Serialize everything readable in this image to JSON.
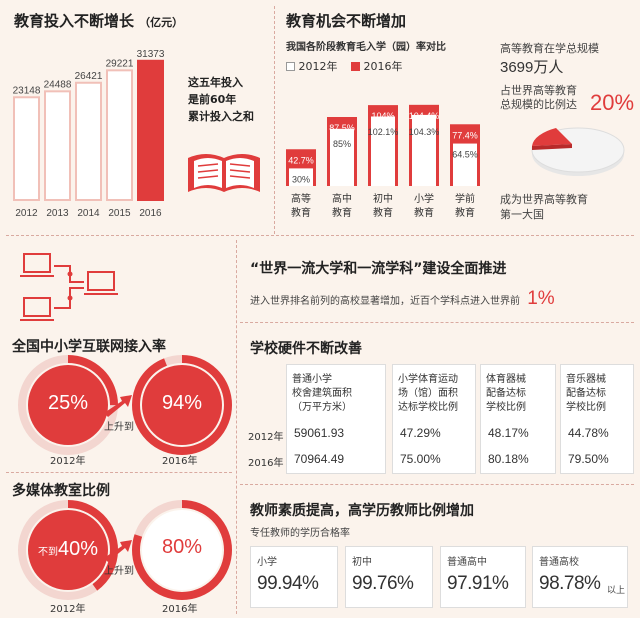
{
  "colors": {
    "red": "#e03c3c",
    "pink": "#f6d2cc",
    "white": "#ffffff",
    "bg": "#fbf3ec",
    "grey": "#cccccc"
  },
  "invest": {
    "title": "教育投入不断增长",
    "unit": "（亿元）",
    "note": [
      "这五年投入",
      "是前60年",
      "累计投入之和"
    ]
  },
  "opportunity": {
    "title": "教育机会不断增加",
    "subtitle": "我国各阶段教育毛入学（园）率对比",
    "legend": [
      "2012年",
      "2016年"
    ],
    "scale_note": "高等教育在学总规模",
    "scale_value": "3699万人",
    "share_note": [
      "占世界高等教育",
      "总规模的比例达"
    ],
    "share_value": "20%",
    "first_note": [
      "成为世界高等教育",
      "第一大国"
    ]
  },
  "worldclass": {
    "title": "“世界一流大学和一流学科”建设全面推进",
    "text": "进入世界排名前列的高校显著增加，近百个学科点进入世界前",
    "value": "1%"
  },
  "internet": {
    "title": "全国中小学互联网接入率",
    "left_value": "25%",
    "right_value": "94%",
    "arrow": "上升到",
    "left_year": "2012年",
    "right_year": "2016年",
    "left_fraction": 0.25,
    "right_fraction": 0.94
  },
  "multimedia": {
    "title": "多媒体教室比例",
    "left_prefix": "不到",
    "left_value": "40%",
    "right_value": "80%",
    "arrow": "上升到",
    "left_year": "2012年",
    "right_year": "2016年",
    "left_fraction": 0.4,
    "right_fraction": 0.8
  },
  "hardware": {
    "title": "学校硬件不断改善",
    "headers": [
      [
        "普通小学",
        "校舍建筑面积",
        "（万平方米）"
      ],
      [
        "小学体育运动",
        "场（馆）面积",
        "达标学校比例"
      ],
      [
        "体育器械",
        "配备达标",
        "学校比例"
      ],
      [
        "音乐器械",
        "配备达标",
        "学校比例"
      ]
    ],
    "rows": [
      {
        "year": "2012年",
        "values": [
          "59061.93",
          "47.29%",
          "48.17%",
          "44.78%"
        ]
      },
      {
        "year": "2016年",
        "values": [
          "70964.49",
          "75.00%",
          "80.18%",
          "79.50%"
        ]
      }
    ]
  },
  "teachers": {
    "title": "教师素质提高，高学历教师比例增加",
    "subtitle": "专任教师的学历合格率",
    "items": [
      {
        "label": "小学",
        "value": "99.94%",
        "suffix": ""
      },
      {
        "label": "初中",
        "value": "99.76%",
        "suffix": ""
      },
      {
        "label": "普通高中",
        "value": "97.91%",
        "suffix": ""
      },
      {
        "label": "普通高校",
        "value": "98.78%",
        "suffix": "以上"
      }
    ]
  },
  "chart_data": [
    {
      "type": "bar",
      "title": "教育投入不断增长",
      "unit": "亿元",
      "categories": [
        "2012",
        "2013",
        "2014",
        "2015",
        "2016"
      ],
      "values": [
        23148,
        24488,
        26421,
        29221,
        31373
      ],
      "ylim": [
        0,
        32000
      ]
    },
    {
      "type": "bar",
      "title": "我国各阶段教育毛入学（园）率对比",
      "categories": [
        "高等教育",
        "高中教育",
        "初中教育",
        "小学教育",
        "学前教育"
      ],
      "series": [
        {
          "name": "2012年",
          "values": [
            30,
            85,
            102.1,
            104.3,
            64.5
          ],
          "labels": [
            "30%",
            "85%",
            "102.1%",
            "104.3%",
            "64.5%"
          ]
        },
        {
          "name": "2016年",
          "values": [
            42.7,
            87.5,
            104,
            104.4,
            77.4
          ],
          "labels": [
            "42.7%",
            "87.5%",
            "104%",
            "104.4%",
            "77.4%"
          ]
        }
      ]
    },
    {
      "type": "pie",
      "title": "占世界高等教育总规模的比例",
      "values": [
        20,
        80
      ],
      "labels": [
        "20%",
        ""
      ]
    }
  ]
}
